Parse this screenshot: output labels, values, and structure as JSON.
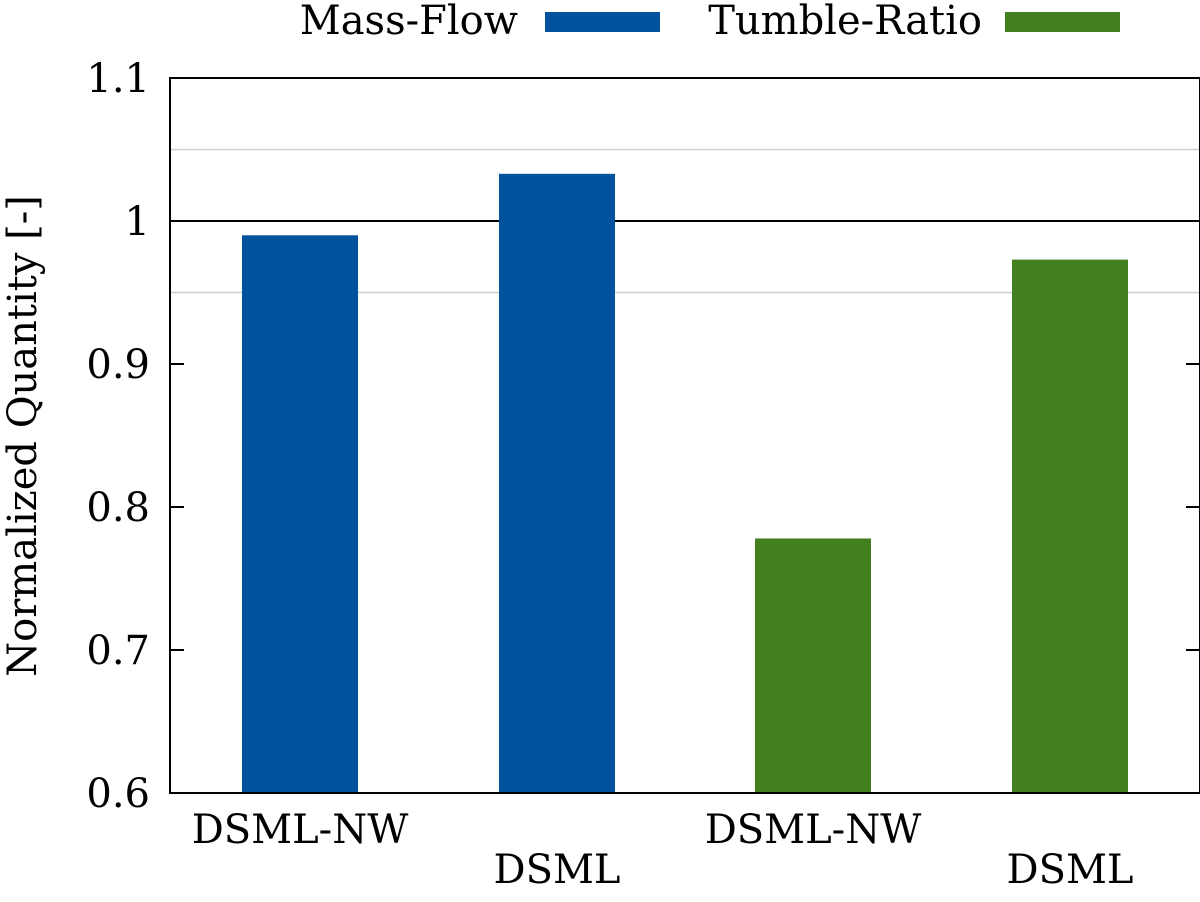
{
  "chart_data": {
    "type": "bar",
    "title": "",
    "ylabel": "Normalized Quantity [-]",
    "xlabel": "",
    "ylim": [
      0.6,
      1.1
    ],
    "yticks": [
      0.6,
      0.7,
      0.8,
      0.9,
      1.0,
      1.1
    ],
    "ytick_labels": [
      "0.6",
      "0.7",
      "0.8",
      "0.9",
      "1",
      "1.1"
    ],
    "reference_lines": [
      1.0
    ],
    "minor_grid": [
      0.95,
      1.05
    ],
    "legend": {
      "placement": "top",
      "entries": [
        {
          "label": "Mass-Flow",
          "color": "#02539e"
        },
        {
          "label": "Tumble-Ratio",
          "color": "#417f1f"
        }
      ]
    },
    "bars": [
      {
        "category": "DSML-NW",
        "series": "Mass-Flow",
        "value": 0.99,
        "color": "#02539e"
      },
      {
        "category": "DSML",
        "series": "Mass-Flow",
        "value": 1.033,
        "color": "#02539e"
      },
      {
        "category": "DSML-NW",
        "series": "Tumble-Ratio",
        "value": 0.778,
        "color": "#417f1f"
      },
      {
        "category": "DSML",
        "series": "Tumble-Ratio",
        "value": 0.973,
        "color": "#417f1f"
      }
    ]
  }
}
